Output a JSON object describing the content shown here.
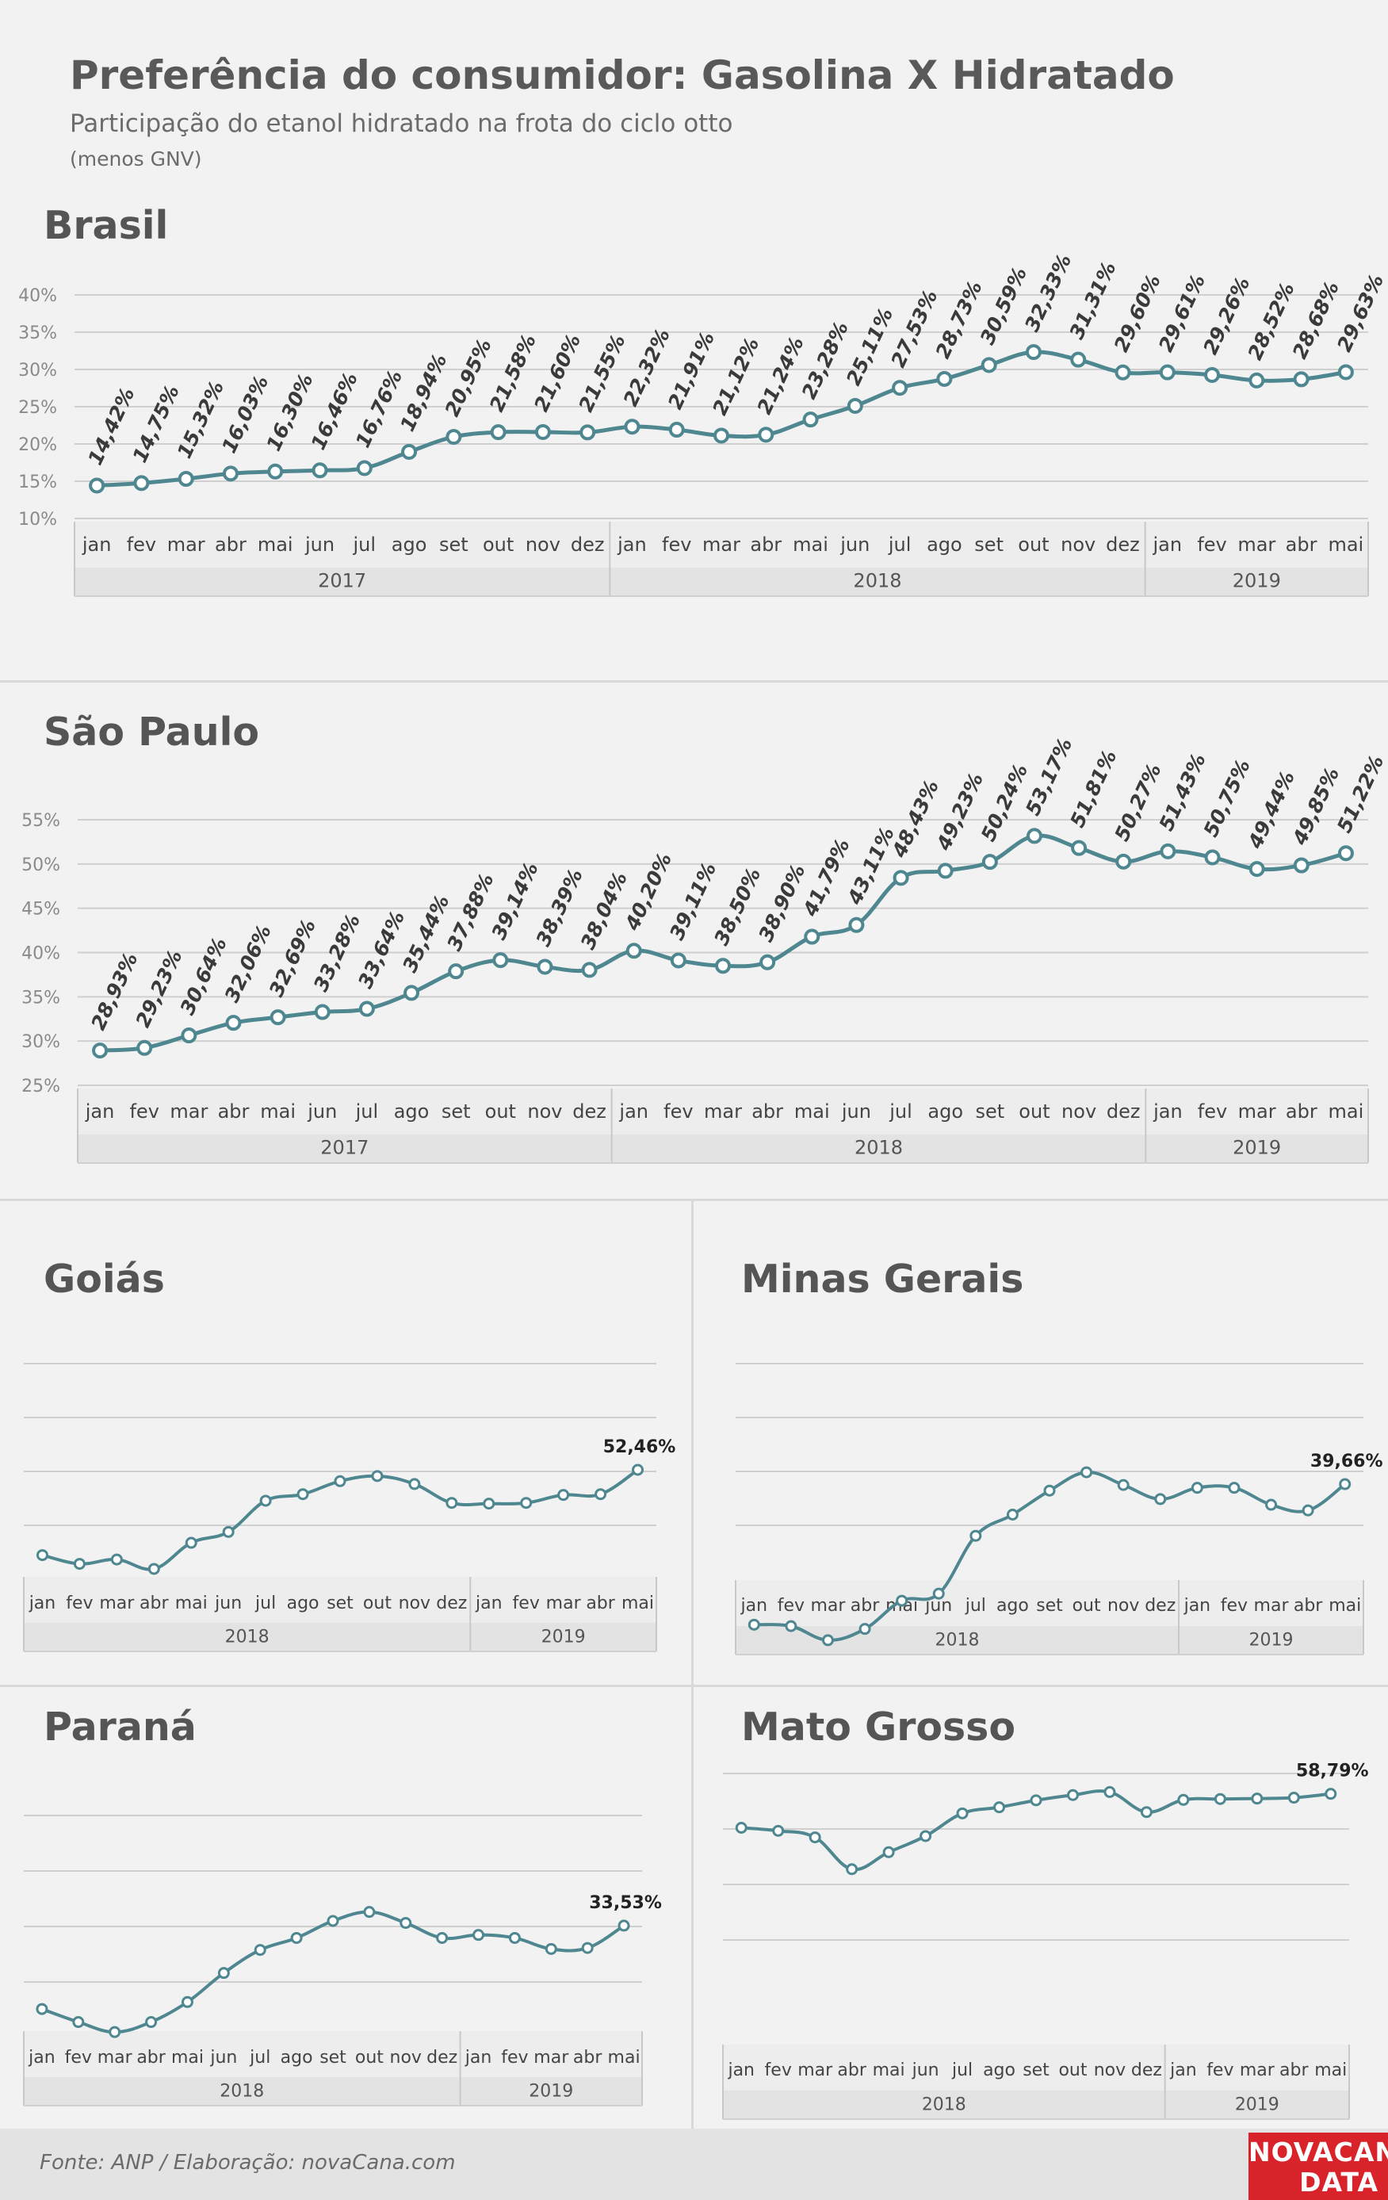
{
  "header": {
    "title": "Preferência do consumidor: Gasolina X Hidratado",
    "subtitle": "Participação do etanol hidratado na frota do ciclo otto",
    "note": "(menos GNV)"
  },
  "footer": {
    "source": "Fonte: ANP  / Elaboração: novaCana.com",
    "logo_line1": "NOVACANA",
    "logo_line2": "DATA"
  },
  "style": {
    "line_color": "#4f8790",
    "grid_color": "#cfcfcf",
    "band_color": "#e3e3e3"
  },
  "chart_data": [
    {
      "id": "brasil",
      "type": "line",
      "title": "Brasil",
      "x": [
        "jan",
        "fev",
        "mar",
        "abr",
        "mai",
        "jun",
        "jul",
        "ago",
        "set",
        "out",
        "nov",
        "dez",
        "jan",
        "fev",
        "mar",
        "abr",
        "mai",
        "jun",
        "jul",
        "ago",
        "set",
        "out",
        "nov",
        "dez",
        "jan",
        "fev",
        "mar",
        "abr",
        "mai"
      ],
      "years": [
        {
          "label": "2017",
          "count": 12
        },
        {
          "label": "2018",
          "count": 12
        },
        {
          "label": "2019",
          "count": 5
        }
      ],
      "values": [
        14.42,
        14.75,
        15.32,
        16.03,
        16.3,
        16.46,
        16.76,
        18.94,
        20.95,
        21.58,
        21.6,
        21.55,
        22.32,
        21.91,
        21.12,
        21.24,
        23.28,
        25.11,
        27.53,
        28.73,
        30.59,
        32.33,
        31.31,
        29.6,
        29.61,
        29.26,
        28.52,
        28.68,
        29.63
      ],
      "labels": [
        "14,42%",
        "14,75%",
        "15,32%",
        "16,03%",
        "16,30%",
        "16,46%",
        "16,76%",
        "18,94%",
        "20,95%",
        "21,58%",
        "21,60%",
        "21,55%",
        "22,32%",
        "21,91%",
        "21,12%",
        "21,24%",
        "23,28%",
        "25,11%",
        "27,53%",
        "28,73%",
        "30,59%",
        "32,33%",
        "31,31%",
        "29,60%",
        "29,61%",
        "29,26%",
        "28,52%",
        "28,68%",
        "29,63%"
      ],
      "yticks": [
        10,
        15,
        20,
        25,
        30,
        35,
        40
      ],
      "ytick_labels": [
        "10%",
        "15%",
        "20%",
        "25%",
        "30%",
        "35%",
        "40%"
      ],
      "ylim": [
        10,
        40
      ],
      "grid": true
    },
    {
      "id": "saopaulo",
      "type": "line",
      "title": "São Paulo",
      "x": [
        "jan",
        "fev",
        "mar",
        "abr",
        "mai",
        "jun",
        "jul",
        "ago",
        "set",
        "out",
        "nov",
        "dez",
        "jan",
        "fev",
        "mar",
        "abr",
        "mai",
        "jun",
        "jul",
        "ago",
        "set",
        "out",
        "nov",
        "dez",
        "jan",
        "fev",
        "mar",
        "abr",
        "mai"
      ],
      "years": [
        {
          "label": "2017",
          "count": 12
        },
        {
          "label": "2018",
          "count": 12
        },
        {
          "label": "2019",
          "count": 5
        }
      ],
      "values": [
        28.93,
        29.23,
        30.64,
        32.06,
        32.69,
        33.28,
        33.64,
        35.44,
        37.88,
        39.14,
        38.39,
        38.04,
        40.2,
        39.11,
        38.5,
        38.9,
        41.79,
        43.11,
        48.43,
        49.23,
        50.24,
        53.17,
        51.81,
        50.27,
        51.43,
        50.75,
        49.44,
        49.85,
        51.22
      ],
      "labels": [
        "28,93%",
        "29,23%",
        "30,64%",
        "32,06%",
        "32,69%",
        "33,28%",
        "33,64%",
        "35,44%",
        "37,88%",
        "39,14%",
        "38,39%",
        "38,04%",
        "40,20%",
        "39,11%",
        "38,50%",
        "38,90%",
        "41,79%",
        "43,11%",
        "48,43%",
        "49,23%",
        "50,24%",
        "53,17%",
        "51,81%",
        "50,27%",
        "51,43%",
        "50,75%",
        "49,44%",
        "49,85%",
        "51,22%"
      ],
      "yticks": [
        25,
        30,
        35,
        40,
        45,
        50,
        55
      ],
      "ytick_labels": [
        "25%",
        "30%",
        "35%",
        "40%",
        "45%",
        "50%",
        "55%"
      ],
      "ylim": [
        25,
        55
      ],
      "grid": true
    },
    {
      "id": "goias",
      "type": "line",
      "title": "Goiás",
      "x": [
        "jan",
        "fev",
        "mar",
        "abr",
        "mai",
        "jun",
        "jul",
        "ago",
        "set",
        "out",
        "nov",
        "dez",
        "jan",
        "fev",
        "mar",
        "abr",
        "mai"
      ],
      "years": [
        {
          "label": "2018",
          "count": 12
        },
        {
          "label": "2019",
          "count": 5
        }
      ],
      "values": [
        40.7,
        39.5,
        40.1,
        38.8,
        42.4,
        43.9,
        48.2,
        49.1,
        50.9,
        51.6,
        50.5,
        47.9,
        47.8,
        47.9,
        49.0,
        49.1,
        52.46
      ],
      "last_label": "52,46%",
      "ylim": [
        20,
        60
      ],
      "gridlines": 4
    },
    {
      "id": "minasgerais",
      "type": "line",
      "title": "Minas Gerais",
      "x": [
        "jan",
        "fev",
        "mar",
        "abr",
        "mai",
        "jun",
        "jul",
        "ago",
        "set",
        "out",
        "nov",
        "dez",
        "jan",
        "fev",
        "mar",
        "abr",
        "mai"
      ],
      "years": [
        {
          "label": "2018",
          "count": 12
        },
        {
          "label": "2019",
          "count": 5
        }
      ],
      "values": [
        29.7,
        29.6,
        28.6,
        29.4,
        31.4,
        31.9,
        36.0,
        37.5,
        39.2,
        40.5,
        39.6,
        38.6,
        39.4,
        39.4,
        38.2,
        37.8,
        39.66
      ],
      "last_label": "39,66%",
      "ylim": [
        20,
        50
      ],
      "gridlines": 4
    },
    {
      "id": "parana",
      "type": "line",
      "title": "Paraná",
      "x": [
        "jan",
        "fev",
        "mar",
        "abr",
        "mai",
        "jun",
        "jul",
        "ago",
        "set",
        "out",
        "nov",
        "dez",
        "jan",
        "fev",
        "mar",
        "abr",
        "mai"
      ],
      "years": [
        {
          "label": "2018",
          "count": 12
        },
        {
          "label": "2019",
          "count": 5
        }
      ],
      "values": [
        25.2,
        23.9,
        22.9,
        23.9,
        25.9,
        28.8,
        31.1,
        32.3,
        34.0,
        34.9,
        33.8,
        32.3,
        32.6,
        32.3,
        31.2,
        31.3,
        33.53
      ],
      "last_label": "33,53%",
      "ylim": [
        10,
        50
      ],
      "gridlines": 4
    },
    {
      "id": "matogrosso",
      "type": "line",
      "title": "Mato Grosso",
      "x": [
        "jan",
        "fev",
        "mar",
        "abr",
        "mai",
        "jun",
        "jul",
        "ago",
        "set",
        "out",
        "nov",
        "dez",
        "jan",
        "fev",
        "mar",
        "abr",
        "mai"
      ],
      "years": [
        {
          "label": "2018",
          "count": 12
        },
        {
          "label": "2019",
          "count": 5
        }
      ],
      "values": [
        51.0,
        50.3,
        48.8,
        41.5,
        45.4,
        49.1,
        54.3,
        55.7,
        57.3,
        58.5,
        59.2,
        54.6,
        57.4,
        57.6,
        57.7,
        57.9,
        58.79
      ],
      "last_label": "58,79%",
      "ylim": [
        10,
        70
      ],
      "gridlines": 4
    }
  ]
}
